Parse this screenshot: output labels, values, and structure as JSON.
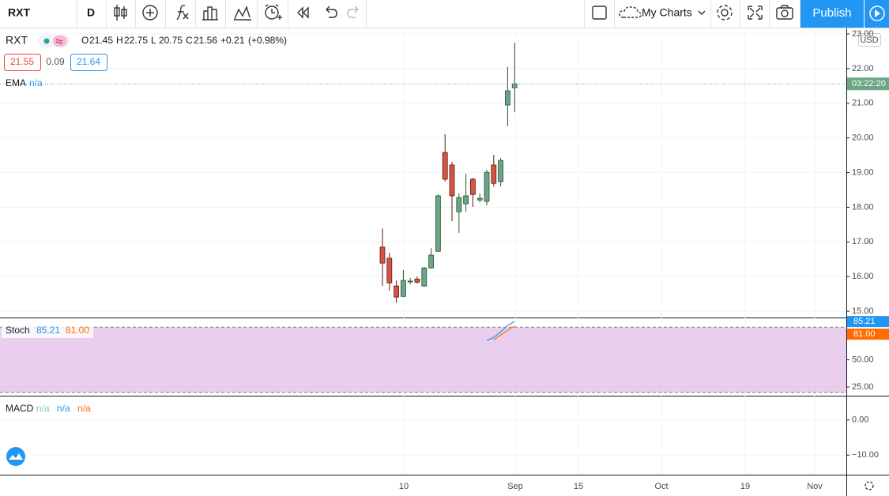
{
  "toolbar": {
    "symbol": "RXT",
    "interval": "D",
    "my_charts": "My Charts",
    "publish": "Publish"
  },
  "legend": {
    "symbol": "RXT",
    "keys": [
      "O",
      "H",
      "L",
      "C"
    ],
    "change": "+0.21",
    "change_pct": "(+0.98%)",
    "bid": "21.55",
    "spread": "0.09",
    "ask": "21.64",
    "ema": "EMA",
    "ema_value": "n/a"
  },
  "chart_data": {
    "type": "candlestick",
    "candles": [
      {
        "o": 16.85,
        "h": 17.39,
        "l": 15.73,
        "c": 16.39
      },
      {
        "o": 16.53,
        "h": 16.69,
        "l": 15.59,
        "c": 15.82
      },
      {
        "o": 15.73,
        "h": 15.89,
        "l": 15.25,
        "c": 15.41
      },
      {
        "o": 15.43,
        "h": 16.19,
        "l": 15.41,
        "c": 15.89
      },
      {
        "o": 15.85,
        "h": 15.96,
        "l": 15.78,
        "c": 15.87
      },
      {
        "o": 15.93,
        "h": 16.0,
        "l": 15.8,
        "c": 15.84
      },
      {
        "o": 15.73,
        "h": 16.28,
        "l": 15.71,
        "c": 16.25
      },
      {
        "o": 16.25,
        "h": 16.82,
        "l": 16.23,
        "c": 16.62
      },
      {
        "o": 16.73,
        "h": 18.37,
        "l": 16.71,
        "c": 18.33
      },
      {
        "o": 19.58,
        "h": 20.11,
        "l": 18.74,
        "c": 18.81
      },
      {
        "o": 19.22,
        "h": 19.31,
        "l": 17.6,
        "c": 18.33
      },
      {
        "o": 17.87,
        "h": 18.4,
        "l": 17.26,
        "c": 18.28
      },
      {
        "o": 18.1,
        "h": 18.97,
        "l": 17.87,
        "c": 18.33
      },
      {
        "o": 18.81,
        "h": 18.85,
        "l": 18.01,
        "c": 18.37
      },
      {
        "o": 18.21,
        "h": 18.4,
        "l": 18.14,
        "c": 18.26
      },
      {
        "o": 18.17,
        "h": 19.08,
        "l": 18.06,
        "c": 19.01
      },
      {
        "o": 19.22,
        "h": 19.51,
        "l": 18.6,
        "c": 18.69
      },
      {
        "o": 18.74,
        "h": 19.42,
        "l": 18.6,
        "c": 19.35
      },
      {
        "o": 20.95,
        "h": 22.05,
        "l": 20.34,
        "c": 21.36
      },
      {
        "o": 21.45,
        "h": 22.75,
        "l": 20.75,
        "c": 21.56
      }
    ],
    "up_color": "#6ba583",
    "down_color": "#d75442",
    "ylim": [
      14.82,
      23.16
    ],
    "yticks": [
      {
        "value": 15,
        "label": "15.00"
      },
      {
        "value": 16,
        "label": "16.00"
      },
      {
        "value": 17,
        "label": "17.00"
      },
      {
        "value": 18,
        "label": "18.00"
      },
      {
        "value": 19,
        "label": "19.00"
      },
      {
        "value": 20,
        "label": "20.00"
      },
      {
        "value": 21,
        "label": "21.00"
      },
      {
        "value": 22,
        "label": "22.00"
      },
      {
        "value": 23,
        "label": "23.00"
      }
    ],
    "currency": "USD",
    "countdown": "03:22:20",
    "time_labels": [
      "10",
      "Sep",
      "15",
      "Oct",
      "19",
      "Nov"
    ]
  },
  "stoch": {
    "name": "Stoch",
    "k_label": "85.21",
    "d_label": "81.00",
    "series": [
      {
        "name": "%K",
        "color": "#2196f3",
        "values": [
          null,
          null,
          null,
          null,
          null,
          null,
          null,
          null,
          null,
          null,
          null,
          null,
          null,
          null,
          null,
          67.6,
          70.6,
          75.7,
          81.6,
          85.21
        ]
      },
      {
        "name": "%D",
        "color": "#ff6d00",
        "values": [
          null,
          null,
          null,
          null,
          null,
          null,
          null,
          null,
          null,
          null,
          null,
          null,
          null,
          null,
          null,
          null,
          68.4,
          72.8,
          77.2,
          81.0
        ]
      }
    ],
    "levels": [
      80,
      20
    ],
    "ylim": [
      17,
      88.2
    ],
    "yticks": [
      {
        "value": 25,
        "label": "25.00"
      },
      {
        "value": 50,
        "label": "50.00"
      }
    ]
  },
  "macd": {
    "name": "MACD",
    "values": [
      "n/a",
      "n/a",
      "n/a"
    ],
    "ylim": [
      -15.56,
      6.67
    ],
    "yticks": [
      {
        "value": 0,
        "label": "0.00"
      },
      {
        "value": -10,
        "label": "−10.00"
      }
    ]
  }
}
